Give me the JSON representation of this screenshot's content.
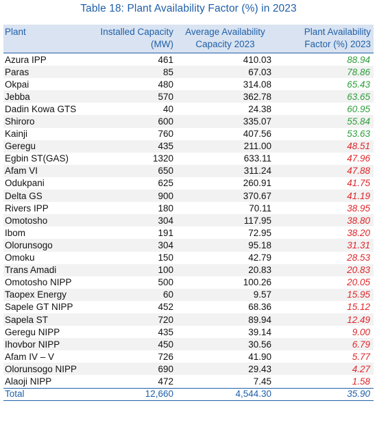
{
  "title": "Table 18: Plant Availability Factor (%) in 2023",
  "headers": {
    "plant": "Plant",
    "installed": "Installed Capacity (MW)",
    "average": "Average Availability Capacity 2023",
    "factor": "Plant Availability Factor (%) 2023"
  },
  "rows": [
    {
      "plant": "Azura IPP",
      "installed": "461",
      "average": "410.03",
      "factor": "88.94",
      "status": "good"
    },
    {
      "plant": "Paras",
      "installed": "85",
      "average": "67.03",
      "factor": "78.86",
      "status": "good"
    },
    {
      "plant": "Okpai",
      "installed": "480",
      "average": "314.08",
      "factor": "65.43",
      "status": "good"
    },
    {
      "plant": "Jebba",
      "installed": "570",
      "average": "362.78",
      "factor": "63.65",
      "status": "good"
    },
    {
      "plant": "Dadin Kowa GTS",
      "installed": "40",
      "average": "24.38",
      "factor": "60.95",
      "status": "good"
    },
    {
      "plant": "Shiroro",
      "installed": "600",
      "average": "335.07",
      "factor": "55.84",
      "status": "good"
    },
    {
      "plant": "Kainji",
      "installed": "760",
      "average": "407.56",
      "factor": "53.63",
      "status": "good"
    },
    {
      "plant": "Geregu",
      "installed": "435",
      "average": "211.00",
      "factor": "48.51",
      "status": "bad"
    },
    {
      "plant": "Egbin ST(GAS)",
      "installed": "1320",
      "average": "633.11",
      "factor": "47.96",
      "status": "bad"
    },
    {
      "plant": "Afam VI",
      "installed": "650",
      "average": "311.24",
      "factor": "47.88",
      "status": "bad"
    },
    {
      "plant": "Odukpani",
      "installed": "625",
      "average": "260.91",
      "factor": "41.75",
      "status": "bad"
    },
    {
      "plant": "Delta GS",
      "installed": "900",
      "average": "370.67",
      "factor": "41.19",
      "status": "bad"
    },
    {
      "plant": "Rivers IPP",
      "installed": "180",
      "average": "70.11",
      "factor": "38.95",
      "status": "bad"
    },
    {
      "plant": "Omotosho",
      "installed": "304",
      "average": "117.95",
      "factor": "38.80",
      "status": "bad"
    },
    {
      "plant": "Ibom",
      "installed": "191",
      "average": "72.95",
      "factor": "38.20",
      "status": "bad"
    },
    {
      "plant": "Olorunsogo",
      "installed": "304",
      "average": "95.18",
      "factor": "31.31",
      "status": "bad"
    },
    {
      "plant": "Omoku",
      "installed": "150",
      "average": "42.79",
      "factor": "28.53",
      "status": "bad"
    },
    {
      "plant": "Trans Amadi",
      "installed": "100",
      "average": "20.83",
      "factor": "20.83",
      "status": "bad"
    },
    {
      "plant": "Omotosho NIPP",
      "installed": "500",
      "average": "100.26",
      "factor": "20.05",
      "status": "bad"
    },
    {
      "plant": "Taopex Energy",
      "installed": "60",
      "average": "9.57",
      "factor": "15.95",
      "status": "bad"
    },
    {
      "plant": "Sapele GT NIPP",
      "installed": "452",
      "average": "68.36",
      "factor": "15.12",
      "status": "bad"
    },
    {
      "plant": "Sapela ST",
      "installed": "720",
      "average": "89.94",
      "factor": "12.49",
      "status": "bad"
    },
    {
      "plant": "Geregu NIPP",
      "installed": "435",
      "average": "39.14",
      "factor": "9.00",
      "status": "bad"
    },
    {
      "plant": "Ihovbor NIPP",
      "installed": "450",
      "average": "30.56",
      "factor": "6.79",
      "status": "bad"
    },
    {
      "plant": "Afam IV – V",
      "installed": "726",
      "average": "41.90",
      "factor": "5.77",
      "status": "bad"
    },
    {
      "plant": "Olorunsogo NIPP",
      "installed": "690",
      "average": "29.43",
      "factor": "4.27",
      "status": "bad"
    },
    {
      "plant": "Alaoji NIPP",
      "installed": "472",
      "average": "7.45",
      "factor": "1.58",
      "status": "bad"
    }
  ],
  "total": {
    "plant": "Total",
    "installed": "12,660",
    "average": "4,544.30",
    "factor": "35.90"
  },
  "colors": {
    "accent": "#1f5fa8",
    "header_bg": "#d9e3f1",
    "good": "#2e9e3a",
    "bad": "#e0262a"
  }
}
